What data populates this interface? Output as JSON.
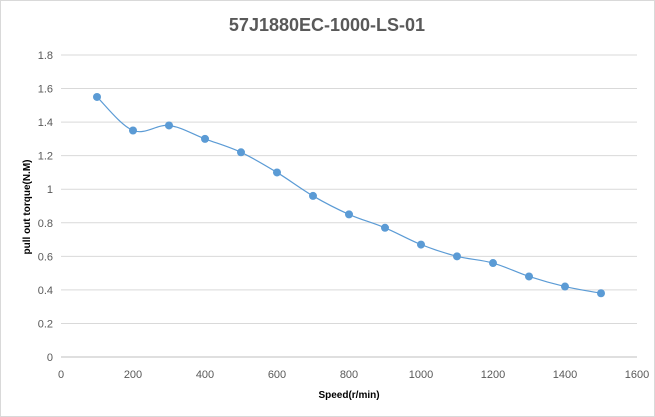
{
  "chart_data": {
    "type": "line",
    "title": "57J1880EC-1000-LS-01",
    "xlabel": "Speed(r/min)",
    "ylabel": "pull out torque(N.M)",
    "xlim": [
      0,
      1600
    ],
    "ylim": [
      0,
      1.8
    ],
    "x_ticks": [
      "0",
      "200",
      "400",
      "600",
      "800",
      "1000",
      "1200",
      "1400",
      "1600"
    ],
    "y_ticks": [
      "0",
      "0.2",
      "0.4",
      "0.6",
      "0.8",
      "1",
      "1.2",
      "1.4",
      "1.6",
      "1.8"
    ],
    "grid": "horizontal",
    "smooth": true,
    "series_color": "#5b9bd5",
    "series": [
      {
        "x": [
          100,
          200,
          300,
          400,
          500,
          600,
          700,
          800,
          900,
          1000,
          1100,
          1200,
          1300,
          1400,
          1500
        ],
        "values": [
          1.55,
          1.35,
          1.38,
          1.3,
          1.22,
          1.1,
          0.96,
          0.85,
          0.77,
          0.67,
          0.6,
          0.56,
          0.48,
          0.42,
          0.38
        ]
      }
    ]
  }
}
